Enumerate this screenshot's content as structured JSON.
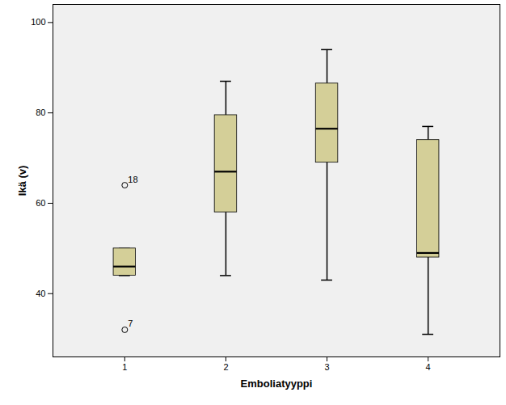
{
  "chart_data": {
    "type": "box",
    "x_label": "Emboliatyyppi",
    "y_label": "Ikä (v)",
    "categories": [
      "1",
      "2",
      "3",
      "4"
    ],
    "min": [
      44,
      44,
      43,
      31
    ],
    "q1": [
      44,
      58,
      69,
      48
    ],
    "median": [
      46,
      67,
      76.5,
      49
    ],
    "q3": [
      50,
      79.5,
      86.5,
      74
    ],
    "max": [
      50,
      87,
      94,
      77
    ],
    "outliers": [
      [
        {
          "value": 64,
          "label": "18"
        },
        {
          "value": 32,
          "label": "7"
        }
      ],
      [],
      [],
      []
    ],
    "color": "#d4cf98",
    "ylim": [
      26,
      104
    ],
    "yticks": [
      40,
      60,
      80,
      100
    ],
    "grid": false
  }
}
